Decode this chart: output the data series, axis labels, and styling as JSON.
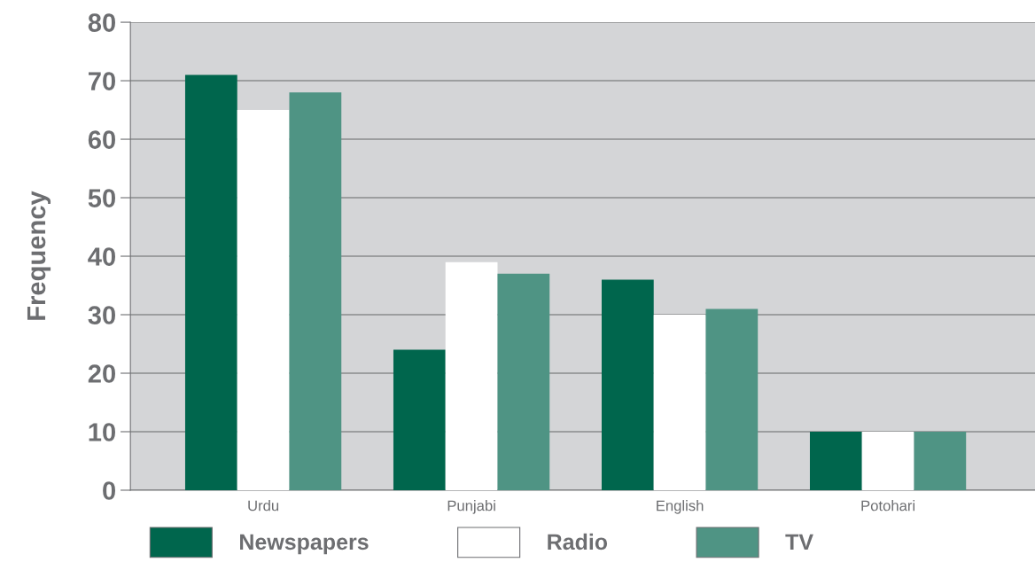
{
  "chart_data": {
    "type": "bar",
    "ylabel": "Frequency",
    "categories": [
      "Urdu",
      "Punjabi",
      "English",
      "Potohari"
    ],
    "series": [
      {
        "name": "Newspapers",
        "color": "#00664d",
        "values": [
          71,
          24,
          36,
          10
        ]
      },
      {
        "name": "Radio",
        "color": "#ffffff",
        "values": [
          65,
          39,
          30,
          10
        ]
      },
      {
        "name": "TV",
        "color": "#4f9484",
        "values": [
          68,
          37,
          31,
          10
        ]
      }
    ],
    "ylim": [
      0,
      80
    ],
    "yticks": [
      0,
      10,
      20,
      30,
      40,
      50,
      60,
      70,
      80
    ],
    "grid": "y",
    "legend": "bottom"
  }
}
